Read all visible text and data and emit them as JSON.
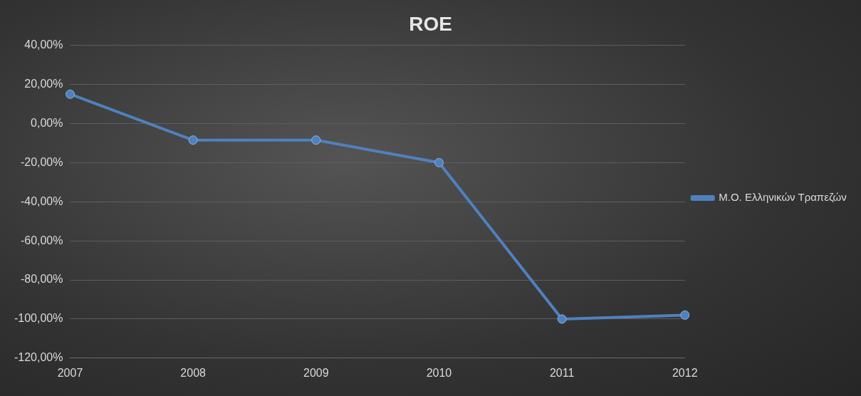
{
  "chart_data": {
    "type": "line",
    "title": "ROE",
    "categories": [
      "2007",
      "2008",
      "2009",
      "2010",
      "2011",
      "2012"
    ],
    "series": [
      {
        "name": "Μ.Ο. Ελληνικών Τραπεζών",
        "color": "#4f81bd",
        "values": [
          15,
          -8.5,
          -8.5,
          -20,
          -100,
          -98
        ]
      }
    ],
    "ylim": [
      -120,
      40
    ],
    "yticks": [
      {
        "value": -120,
        "label": "-120,00%"
      },
      {
        "value": -100,
        "label": "-100,00%"
      },
      {
        "value": -80,
        "label": "-80,00%"
      },
      {
        "value": -60,
        "label": "-60,00%"
      },
      {
        "value": -40,
        "label": "-40,00%"
      },
      {
        "value": -20,
        "label": "-20,00%"
      },
      {
        "value": 0,
        "label": "0,00%"
      },
      {
        "value": 20,
        "label": "20,00%"
      },
      {
        "value": 40,
        "label": "40,00%"
      }
    ],
    "grid": "y",
    "legend": "right",
    "marker": "circle",
    "line_style": "solid"
  }
}
